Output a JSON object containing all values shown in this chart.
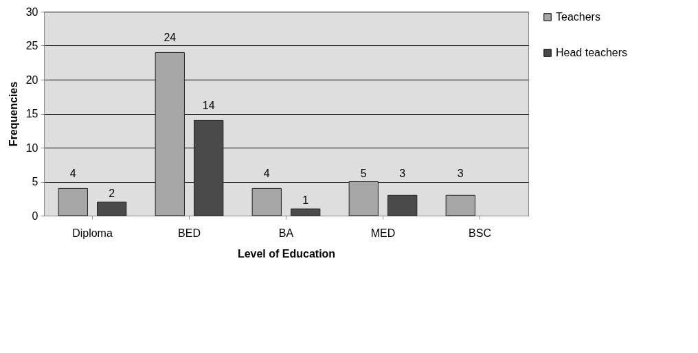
{
  "chart_data": {
    "type": "bar",
    "xlabel": "Level of Education",
    "ylabel": "Frequencies",
    "categories": [
      "Diploma",
      "BED",
      "BA",
      "MED",
      "BSC"
    ],
    "series": [
      {
        "name": "Teachers",
        "color": "#a6a6a6",
        "values": [
          4,
          24,
          4,
          5,
          3
        ]
      },
      {
        "name": "Head teachers",
        "color": "#4a4a4a",
        "values": [
          2,
          14,
          1,
          3,
          null
        ]
      }
    ],
    "ylim": [
      0,
      30
    ],
    "yticks": [
      0,
      5,
      10,
      15,
      20,
      25,
      30
    ],
    "grid": "y",
    "legend": "right",
    "data_labels": true
  }
}
